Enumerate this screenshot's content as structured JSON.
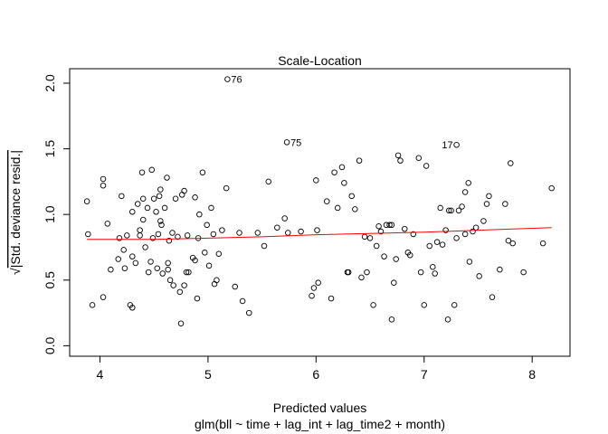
{
  "chart_data": {
    "type": "scatter",
    "title": "Scale-Location",
    "xlabel": "Predicted values",
    "subtitle": "glm(bll ~ time + lag_int + lag_time2 + month)",
    "ylabel_radical": "√",
    "ylabel": "|Std. deviance resid.|",
    "xlim": [
      3.72,
      8.35
    ],
    "ylim": [
      -0.08,
      2.11
    ],
    "xticks": [
      4,
      5,
      6,
      7,
      8
    ],
    "yticks": [
      0.0,
      0.5,
      1.0,
      1.5,
      2.0
    ],
    "xtick_labels": [
      "4",
      "5",
      "6",
      "7",
      "8"
    ],
    "ytick_labels": [
      "0.0",
      "0.5",
      "1.0",
      "1.5",
      "2.0"
    ],
    "grid": false,
    "colors": {
      "points": "#000000",
      "smooth": "#ff0000"
    },
    "smooth_line": {
      "x": [
        3.88,
        4.5,
        5.0,
        5.5,
        6.0,
        6.5,
        7.0,
        7.5,
        8.18
      ],
      "y": [
        0.81,
        0.81,
        0.82,
        0.83,
        0.845,
        0.855,
        0.865,
        0.88,
        0.9
      ]
    },
    "labeled_points": [
      {
        "label": "76",
        "x": 5.18,
        "y": 2.03,
        "side": "right"
      },
      {
        "label": "75",
        "x": 5.73,
        "y": 1.55,
        "side": "right"
      },
      {
        "label": "17",
        "x": 7.3,
        "y": 1.53,
        "side": "left"
      }
    ],
    "points": [
      [
        3.88,
        1.1
      ],
      [
        3.89,
        0.85
      ],
      [
        3.93,
        0.31
      ],
      [
        4.03,
        1.27
      ],
      [
        4.03,
        1.22
      ],
      [
        4.03,
        0.37
      ],
      [
        4.07,
        0.93
      ],
      [
        4.1,
        0.58
      ],
      [
        4.17,
        0.66
      ],
      [
        4.18,
        0.82
      ],
      [
        4.2,
        1.14
      ],
      [
        4.22,
        0.73
      ],
      [
        4.23,
        0.59
      ],
      [
        4.25,
        0.84
      ],
      [
        4.28,
        0.31
      ],
      [
        4.3,
        0.29
      ],
      [
        4.3,
        1.02
      ],
      [
        4.3,
        0.68
      ],
      [
        4.33,
        0.63
      ],
      [
        4.35,
        1.08
      ],
      [
        4.37,
        0.88
      ],
      [
        4.37,
        0.84
      ],
      [
        4.39,
        1.32
      ],
      [
        4.4,
        1.12
      ],
      [
        4.4,
        0.96
      ],
      [
        4.42,
        0.75
      ],
      [
        4.44,
        1.05
      ],
      [
        4.45,
        0.56
      ],
      [
        4.47,
        0.64
      ],
      [
        4.48,
        1.34
      ],
      [
        4.49,
        0.82
      ],
      [
        4.5,
        1.12
      ],
      [
        4.52,
        1.02
      ],
      [
        4.53,
        0.59
      ],
      [
        4.54,
        0.85
      ],
      [
        4.55,
        1.14
      ],
      [
        4.56,
        1.19
      ],
      [
        4.56,
        0.95
      ],
      [
        4.57,
        0.92
      ],
      [
        4.58,
        0.55
      ],
      [
        4.6,
        1.05
      ],
      [
        4.62,
        1.28
      ],
      [
        4.63,
        0.63
      ],
      [
        4.63,
        0.58
      ],
      [
        4.64,
        0.8
      ],
      [
        4.65,
        0.5
      ],
      [
        4.67,
        0.86
      ],
      [
        4.68,
        0.46
      ],
      [
        4.7,
        1.12
      ],
      [
        4.72,
        0.83
      ],
      [
        4.74,
        0.41
      ],
      [
        4.75,
        0.17
      ],
      [
        4.76,
        1.15
      ],
      [
        4.78,
        1.18
      ],
      [
        4.78,
        0.46
      ],
      [
        4.8,
        0.56
      ],
      [
        4.81,
        0.84
      ],
      [
        4.82,
        0.56
      ],
      [
        4.86,
        0.67
      ],
      [
        4.88,
        1.13
      ],
      [
        4.88,
        0.65
      ],
      [
        4.9,
        0.36
      ],
      [
        4.91,
        0.82
      ],
      [
        4.92,
        1.0
      ],
      [
        4.95,
        1.32
      ],
      [
        4.97,
        0.71
      ],
      [
        4.99,
        0.92
      ],
      [
        5.01,
        0.61
      ],
      [
        5.03,
        1.05
      ],
      [
        5.05,
        0.85
      ],
      [
        5.06,
        0.47
      ],
      [
        5.08,
        0.5
      ],
      [
        5.1,
        0.7
      ],
      [
        5.13,
        0.88
      ],
      [
        5.17,
        1.2
      ],
      [
        5.25,
        0.45
      ],
      [
        5.29,
        0.86
      ],
      [
        5.32,
        0.34
      ],
      [
        5.38,
        0.25
      ],
      [
        5.46,
        0.86
      ],
      [
        5.52,
        0.76
      ],
      [
        5.56,
        1.25
      ],
      [
        5.64,
        0.9
      ],
      [
        5.71,
        0.97
      ],
      [
        5.74,
        0.86
      ],
      [
        5.86,
        0.87
      ],
      [
        5.96,
        0.38
      ],
      [
        5.98,
        0.44
      ],
      [
        6.0,
        1.26
      ],
      [
        6.01,
        0.88
      ],
      [
        6.02,
        0.48
      ],
      [
        6.1,
        1.1
      ],
      [
        6.14,
        0.36
      ],
      [
        6.17,
        1.32
      ],
      [
        6.2,
        1.05
      ],
      [
        6.24,
        1.36
      ],
      [
        6.26,
        1.24
      ],
      [
        6.29,
        0.56
      ],
      [
        6.3,
        0.56
      ],
      [
        6.33,
        1.14
      ],
      [
        6.36,
        1.04
      ],
      [
        6.4,
        1.41
      ],
      [
        6.42,
        0.52
      ],
      [
        6.45,
        0.83
      ],
      [
        6.47,
        0.56
      ],
      [
        6.5,
        0.82
      ],
      [
        6.53,
        0.31
      ],
      [
        6.56,
        0.76
      ],
      [
        6.58,
        0.91
      ],
      [
        6.6,
        0.87
      ],
      [
        6.63,
        0.68
      ],
      [
        6.65,
        0.92
      ],
      [
        6.68,
        0.92
      ],
      [
        6.7,
        0.92
      ],
      [
        6.72,
        0.48
      ],
      [
        6.74,
        0.66
      ],
      [
        6.76,
        1.45
      ],
      [
        6.78,
        1.41
      ],
      [
        6.82,
        0.89
      ],
      [
        6.85,
        0.71
      ],
      [
        6.87,
        0.69
      ],
      [
        6.9,
        0.85
      ],
      [
        6.95,
        1.43
      ],
      [
        6.97,
        0.56
      ],
      [
        7.0,
        0.31
      ],
      [
        7.02,
        1.37
      ],
      [
        7.05,
        0.76
      ],
      [
        7.08,
        0.6
      ],
      [
        7.1,
        0.55
      ],
      [
        7.12,
        0.79
      ],
      [
        7.15,
        1.05
      ],
      [
        7.17,
        0.77
      ],
      [
        7.2,
        0.88
      ],
      [
        7.23,
        1.03
      ],
      [
        7.25,
        1.03
      ],
      [
        7.28,
        0.31
      ],
      [
        7.3,
        0.82
      ],
      [
        7.32,
        1.03
      ],
      [
        7.35,
        1.06
      ],
      [
        7.38,
        1.17
      ],
      [
        7.41,
        1.24
      ],
      [
        7.42,
        0.64
      ],
      [
        7.45,
        0.87
      ],
      [
        7.48,
        0.9
      ],
      [
        7.51,
        0.53
      ],
      [
        7.55,
        0.95
      ],
      [
        7.58,
        1.08
      ],
      [
        7.6,
        1.14
      ],
      [
        7.63,
        0.37
      ],
      [
        7.7,
        0.58
      ],
      [
        7.75,
        1.08
      ],
      [
        7.78,
        0.8
      ],
      [
        7.8,
        1.39
      ],
      [
        7.82,
        0.78
      ],
      [
        7.92,
        0.56
      ],
      [
        8.1,
        0.78
      ],
      [
        8.18,
        1.2
      ],
      [
        6.7,
        0.2
      ],
      [
        7.22,
        0.2
      ],
      [
        7.38,
        0.85
      ]
    ]
  }
}
